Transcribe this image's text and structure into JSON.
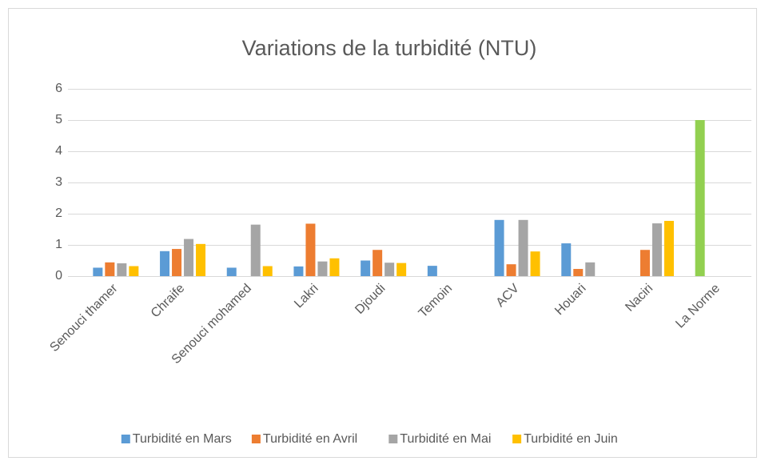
{
  "chart_data": {
    "type": "bar",
    "title": "Variations de la turbidité (NTU)",
    "categories": [
      "Senouci thamer",
      "Chraife",
      "Senouci mohamed",
      "Lakri",
      "Djoudi",
      "Temoin",
      "ACV",
      "Houari",
      "Naciri",
      "La Norme"
    ],
    "series": [
      {
        "name": "Turbidité en Mars",
        "color": "#5b9bd5",
        "values": [
          0.27,
          0.8,
          0.27,
          0.31,
          0.5,
          0.33,
          1.8,
          1.05,
          null,
          5
        ],
        "colors": [
          "#5b9bd5",
          "#5b9bd5",
          "#5b9bd5",
          "#5b9bd5",
          "#5b9bd5",
          "#5b9bd5",
          "#5b9bd5",
          "#5b9bd5",
          "#5b9bd5",
          "#92d050"
        ]
      },
      {
        "name": "Turbidité en Avril",
        "color": "#ed7d31",
        "values": [
          0.44,
          0.87,
          null,
          1.68,
          0.84,
          null,
          0.38,
          0.23,
          0.84,
          null
        ]
      },
      {
        "name": "Turbidité en Mai",
        "color": "#a5a5a5",
        "values": [
          0.41,
          1.19,
          1.65,
          0.47,
          0.43,
          null,
          1.8,
          0.44,
          1.69,
          null
        ]
      },
      {
        "name": "Turbidité en Juin",
        "color": "#ffc000",
        "values": [
          0.32,
          1.03,
          0.32,
          0.57,
          0.42,
          null,
          0.79,
          null,
          1.77,
          null
        ]
      }
    ],
    "ylim": [
      0,
      6
    ],
    "yticks": [
      0,
      1,
      2,
      3,
      4,
      5,
      6
    ],
    "grid": true,
    "legend": "bottom"
  }
}
